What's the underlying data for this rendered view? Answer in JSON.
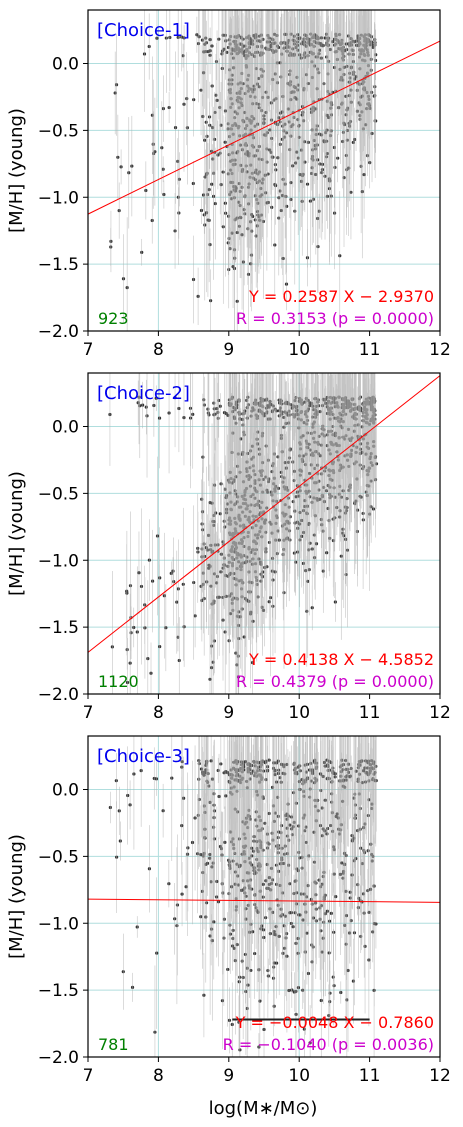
{
  "figure": {
    "xlabel": "log(M∗/M⊙)",
    "ylabel": "[M/H] (young)"
  },
  "chart_data": [
    {
      "type": "scatter",
      "panel_label": "[Choice-1]",
      "count": "923",
      "fit_text": "Y = 0.2587 X − 2.9370",
      "corr_text": "R = 0.3153 (p = 0.0000)",
      "fit": {
        "slope": 0.2587,
        "intercept": -2.937
      },
      "xlim": [
        7,
        12
      ],
      "ylim": [
        -2.0,
        0.4
      ],
      "xticks": [
        "7",
        "8",
        "9",
        "10",
        "11",
        "12"
      ],
      "yticks": [
        "0.0",
        "−0.5",
        "−1.0",
        "−1.5",
        "−2.0"
      ],
      "ylabel": "[M/H] (young)",
      "grid": true,
      "n_points": 923
    },
    {
      "type": "scatter",
      "panel_label": "[Choice-2]",
      "count": "1120",
      "fit_text": "Y = 0.4138 X − 4.5852",
      "corr_text": "R = 0.4379 (p = 0.0000)",
      "fit": {
        "slope": 0.4138,
        "intercept": -4.5852
      },
      "xlim": [
        7,
        12
      ],
      "ylim": [
        -2.0,
        0.4
      ],
      "xticks": [
        "7",
        "8",
        "9",
        "10",
        "11",
        "12"
      ],
      "yticks": [
        "0.0",
        "−0.5",
        "−1.0",
        "−1.5",
        "−2.0"
      ],
      "ylabel": "[M/H] (young)",
      "grid": true,
      "n_points": 1120
    },
    {
      "type": "scatter",
      "panel_label": "[Choice-3]",
      "count": "781",
      "fit_text": "Y = −0.0048 X − 0.7860",
      "corr_text": "R = −0.1040 (p = 0.0036)",
      "fit": {
        "slope": -0.0048,
        "intercept": -0.786
      },
      "xlim": [
        7,
        12
      ],
      "ylim": [
        -2.0,
        0.4
      ],
      "xticks": [
        "7",
        "8",
        "9",
        "10",
        "11",
        "12"
      ],
      "yticks": [
        "0.0",
        "−0.5",
        "−1.0",
        "−1.5",
        "−2.0"
      ],
      "ylabel": "[M/H] (young)",
      "xlabel": "log(M∗/M⊙)",
      "grid": true,
      "n_points": 781
    }
  ],
  "colors": {
    "panel_label": "#0000ee",
    "count": "#008000",
    "fit_text": "#ff0000",
    "corr_text": "#cc00cc",
    "fit_line": "#ff0000",
    "points": "#333333",
    "errorbars": "#b0b0b0",
    "grid": "#b0dede"
  }
}
